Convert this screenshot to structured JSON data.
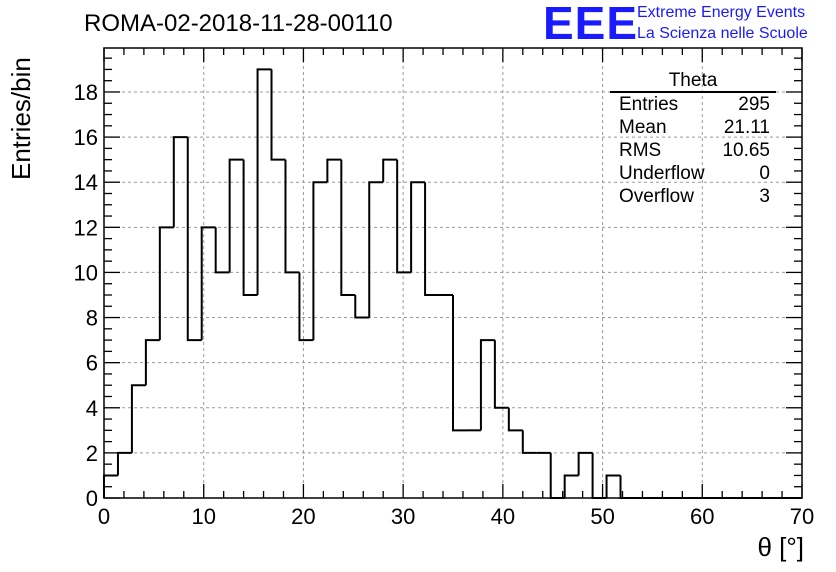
{
  "title": "ROMA-02-2018-11-28-00110",
  "logo": {
    "letters": "EEE",
    "line1": "Extreme Energy Events",
    "line2": "La Scienza nelle Scuole",
    "color": "#1a1aff"
  },
  "stats_box": {
    "title": "Theta",
    "rows": [
      {
        "label": "Entries",
        "value": "295"
      },
      {
        "label": "Mean",
        "value": "21.11"
      },
      {
        "label": "RMS",
        "value": "10.65"
      },
      {
        "label": "Underflow",
        "value": "0"
      },
      {
        "label": "Overflow",
        "value": "3"
      }
    ]
  },
  "chart_data": {
    "type": "bar",
    "histogram": true,
    "title": "ROMA-02-2018-11-28-00110",
    "xlabel": "θ [°]",
    "ylabel": "Entries/bin",
    "xlim": [
      0,
      70
    ],
    "ylim": [
      0,
      19.95
    ],
    "grid": true,
    "bin_width": 1.4,
    "x_ticks": [
      0,
      10,
      20,
      30,
      40,
      50,
      60,
      70
    ],
    "y_ticks": [
      0,
      2,
      4,
      6,
      8,
      10,
      12,
      14,
      16,
      18
    ],
    "values": [
      1,
      2,
      5,
      7,
      12,
      16,
      7,
      12,
      10,
      15,
      9,
      19,
      15,
      10,
      7,
      14,
      15,
      9,
      8,
      14,
      15,
      10,
      14,
      9,
      9,
      3,
      3,
      7,
      4,
      3,
      2,
      2,
      0,
      1,
      2,
      0,
      1,
      0,
      0,
      0,
      0,
      0,
      0,
      0,
      0,
      0,
      0,
      0,
      0,
      0
    ],
    "line_color": "#000000"
  }
}
